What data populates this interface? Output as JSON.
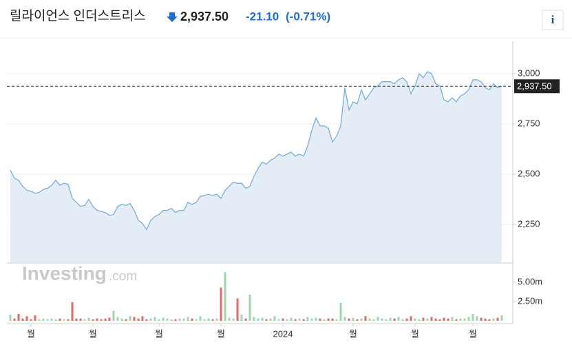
{
  "header": {
    "title": "릴라이언스 인더스트리스",
    "price": "2,937.50",
    "change": "-21.10",
    "change_pct": "(-0.71%)",
    "info": "i"
  },
  "watermark": {
    "brand": "Investing",
    "domain": ".com"
  },
  "chart_data": {
    "type": "line",
    "categories": [
      null,
      null,
      null,
      null,
      null,
      "월",
      null,
      null,
      null,
      null,
      null,
      null,
      null,
      null,
      null,
      null,
      null,
      null,
      null,
      null,
      "월",
      null,
      null,
      null,
      null,
      null,
      null,
      null,
      null,
      null,
      null,
      null,
      null,
      null,
      null,
      null,
      "월",
      null,
      null,
      null,
      null,
      null,
      null,
      null,
      null,
      null,
      null,
      null,
      null,
      null,
      null,
      "월",
      null,
      null,
      null,
      null,
      null,
      null,
      null,
      null,
      null,
      null,
      null,
      null,
      null,
      null,
      "2024",
      null,
      null,
      null,
      null,
      null,
      null,
      null,
      null,
      null,
      null,
      null,
      null,
      null,
      null,
      null,
      null,
      "월",
      null,
      null,
      null,
      null,
      null,
      null,
      null,
      null,
      null,
      null,
      null,
      null,
      null,
      null,
      "월",
      null,
      null,
      null,
      null,
      null,
      null,
      null,
      null,
      null,
      null,
      null,
      null,
      null,
      "월",
      null,
      null,
      null,
      null,
      null,
      null,
      null
    ],
    "series": [
      {
        "color": "#7aaed6",
        "fill": "#e4edf6",
        "values": [
          2520,
          2480,
          2470,
          2440,
          2420,
          2415,
          2405,
          2410,
          2425,
          2430,
          2445,
          2470,
          2445,
          2455,
          2450,
          2380,
          2360,
          2340,
          2345,
          2375,
          2340,
          2320,
          2315,
          2310,
          2295,
          2300,
          2340,
          2350,
          2345,
          2355,
          2320,
          2270,
          2255,
          2225,
          2270,
          2290,
          2300,
          2320,
          2320,
          2330,
          2310,
          2320,
          2320,
          2360,
          2350,
          2360,
          2390,
          2395,
          2400,
          2395,
          2400,
          2380,
          2420,
          2440,
          2460,
          2455,
          2455,
          2430,
          2440,
          2490,
          2530,
          2560,
          2550,
          2570,
          2580,
          2600,
          2590,
          2600,
          2610,
          2590,
          2600,
          2590,
          2640,
          2720,
          2780,
          2740,
          2740,
          2730,
          2660,
          2690,
          2740,
          2930,
          2820,
          2860,
          2850,
          2920,
          2870,
          2900,
          2930,
          2940,
          2960,
          2960,
          2960,
          2950,
          2970,
          2980,
          2960,
          2900,
          2940,
          3000,
          2980,
          3010,
          3000,
          2950,
          2940,
          2870,
          2860,
          2880,
          2860,
          2890,
          2900,
          2920,
          2970,
          2970,
          2960,
          2930,
          2920,
          2950,
          2930,
          2937.5
        ]
      },
      {
        "type": "bar",
        "axis": "y2",
        "up_color": "#9fd6ab",
        "down_color": "#e26a6a",
        "values": [
          0.8,
          0.3,
          0.9,
          0.3,
          0.6,
          0.2,
          0.7,
          0.2,
          0.3,
          0.2,
          0.3,
          0.2,
          0.3,
          0.2,
          0.2,
          2.4,
          0.3,
          0.3,
          0.2,
          0.4,
          0.2,
          0.3,
          0.2,
          0.3,
          0.4,
          1.3,
          0.5,
          0.3,
          0.2,
          0.6,
          0.5,
          0.3,
          0.6,
          0.2,
          0.3,
          0.5,
          0.2,
          0.4,
          0.3,
          0.2,
          0.2,
          0.3,
          0.3,
          0.5,
          0.3,
          0.2,
          0.6,
          0.2,
          0.3,
          0.2,
          0.3,
          4.3,
          6.3,
          0.4,
          0.3,
          2.9,
          0.8,
          0.3,
          3.4,
          0.5,
          0.3,
          0.4,
          0.2,
          0.3,
          0.6,
          0.2,
          0.3,
          0.2,
          0.4,
          0.2,
          0.3,
          0.2,
          0.5,
          0.3,
          0.4,
          0.3,
          0.2,
          0.3,
          0.3,
          0.2,
          2.3,
          0.5,
          0.3,
          0.4,
          0.2,
          0.3,
          0.6,
          0.3,
          0.2,
          0.5,
          0.3,
          0.2,
          0.4,
          0.3,
          0.5,
          0.2,
          0.3,
          0.6,
          0.3,
          0.2,
          0.4,
          0.3,
          0.5,
          0.3,
          0.2,
          0.4,
          0.3,
          0.5,
          0.2,
          0.3,
          0.3,
          0.5,
          0.9,
          0.6,
          0.4,
          0.3,
          0.2,
          0.3,
          0.4,
          0.7
        ]
      }
    ],
    "ylim": [
      2062,
      3161
    ],
    "yticks": [
      {
        "value": 2250,
        "label": "2,250"
      },
      {
        "value": 2500,
        "label": "2,500"
      },
      {
        "value": 2750,
        "label": "2,750"
      },
      {
        "value": 3000,
        "label": "3,000"
      }
    ],
    "y2lim": [
      0,
      7.3
    ],
    "y2ticks": [
      {
        "value": 2.5,
        "label": "2.50m"
      },
      {
        "value": 5,
        "label": "5.00m"
      }
    ],
    "grid": true
  }
}
